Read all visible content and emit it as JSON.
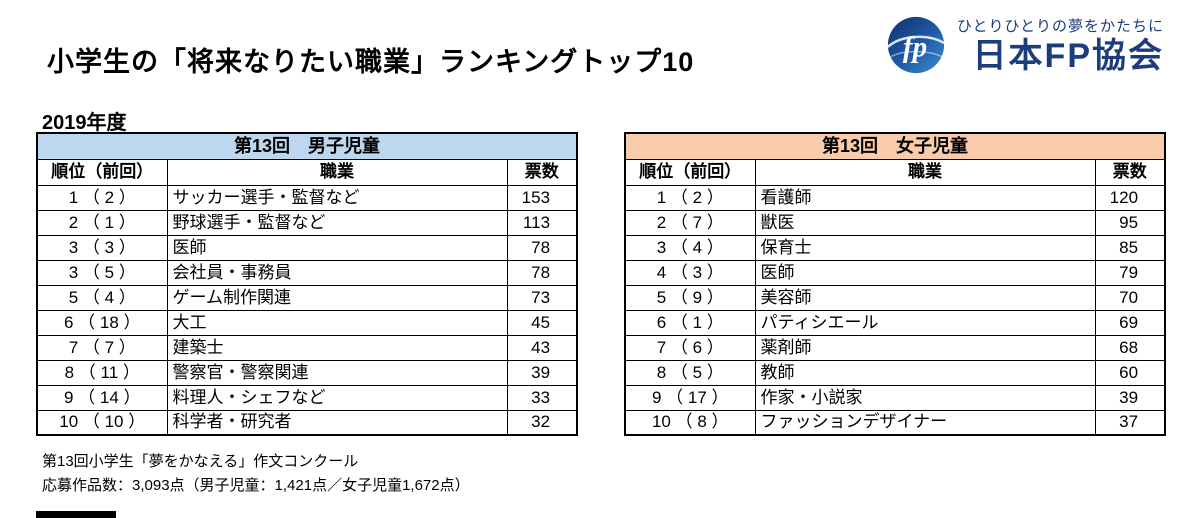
{
  "header": {
    "title": "小学生の「将来なりたい職業」ランキングトップ10",
    "year_label": "2019年度"
  },
  "logo": {
    "tagline": "ひとりひとりの夢をかたちに",
    "org_name": "日本FP協会",
    "mark_label": "fp",
    "colors": {
      "brand_navy": "#1b3d7d",
      "mark_blue_dark": "#0d2f6e",
      "mark_blue_light": "#3c8fd0"
    }
  },
  "chart_data": [
    {
      "type": "table",
      "title": "第13回　男子児童",
      "header_bg": "#bdd7ee",
      "columns": [
        "順位（前回）",
        "職業",
        "票数"
      ],
      "rows": [
        {
          "rank": 1,
          "previous_rank": 2,
          "rank_label": "1 （ 2 ）",
          "job": "サッカー選手・監督など",
          "votes": 153
        },
        {
          "rank": 2,
          "previous_rank": 1,
          "rank_label": "2 （ 1 ）",
          "job": "野球選手・監督など",
          "votes": 113
        },
        {
          "rank": 3,
          "previous_rank": 3,
          "rank_label": "3 （ 3 ）",
          "job": "医師",
          "votes": 78
        },
        {
          "rank": 3,
          "previous_rank": 5,
          "rank_label": "3 （ 5 ）",
          "job": "会社員・事務員",
          "votes": 78
        },
        {
          "rank": 5,
          "previous_rank": 4,
          "rank_label": "5 （ 4 ）",
          "job": "ゲーム制作関連",
          "votes": 73
        },
        {
          "rank": 6,
          "previous_rank": 18,
          "rank_label": "6 （ 18 ）",
          "job": "大工",
          "votes": 45
        },
        {
          "rank": 7,
          "previous_rank": 7,
          "rank_label": "7 （ 7 ）",
          "job": "建築士",
          "votes": 43
        },
        {
          "rank": 8,
          "previous_rank": 11,
          "rank_label": "8 （ 11 ）",
          "job": "警察官・警察関連",
          "votes": 39
        },
        {
          "rank": 9,
          "previous_rank": 14,
          "rank_label": "9 （ 14 ）",
          "job": "料理人・シェフなど",
          "votes": 33
        },
        {
          "rank": 10,
          "previous_rank": 10,
          "rank_label": "10 （ 10 ）",
          "job": "科学者・研究者",
          "votes": 32
        }
      ]
    },
    {
      "type": "table",
      "title": "第13回　女子児童",
      "header_bg": "#f8cbad",
      "columns": [
        "順位（前回）",
        "職業",
        "票数"
      ],
      "rows": [
        {
          "rank": 1,
          "previous_rank": 2,
          "rank_label": "1 （ 2 ）",
          "job": "看護師",
          "votes": 120
        },
        {
          "rank": 2,
          "previous_rank": 7,
          "rank_label": "2 （ 7 ）",
          "job": "獣医",
          "votes": 95
        },
        {
          "rank": 3,
          "previous_rank": 4,
          "rank_label": "3 （ 4 ）",
          "job": "保育士",
          "votes": 85
        },
        {
          "rank": 4,
          "previous_rank": 3,
          "rank_label": "4 （ 3 ）",
          "job": "医師",
          "votes": 79
        },
        {
          "rank": 5,
          "previous_rank": 9,
          "rank_label": "5 （ 9 ）",
          "job": "美容師",
          "votes": 70
        },
        {
          "rank": 6,
          "previous_rank": 1,
          "rank_label": "6 （ 1 ）",
          "job": "パティシエール",
          "votes": 69
        },
        {
          "rank": 7,
          "previous_rank": 6,
          "rank_label": "7 （ 6 ）",
          "job": "薬剤師",
          "votes": 68
        },
        {
          "rank": 8,
          "previous_rank": 5,
          "rank_label": "8 （ 5 ）",
          "job": "教師",
          "votes": 60
        },
        {
          "rank": 9,
          "previous_rank": 17,
          "rank_label": "9 （ 17 ）",
          "job": "作家・小説家",
          "votes": 39
        },
        {
          "rank": 10,
          "previous_rank": 8,
          "rank_label": "10 （ 8 ）",
          "job": "ファッションデザイナー",
          "votes": 37
        }
      ]
    }
  ],
  "footer": {
    "line1": "第13回小学生「夢をかなえる」作文コンクール",
    "line2": "応募作品数：3,093点（男子児童：1,421点／女子児童1,672点）"
  }
}
